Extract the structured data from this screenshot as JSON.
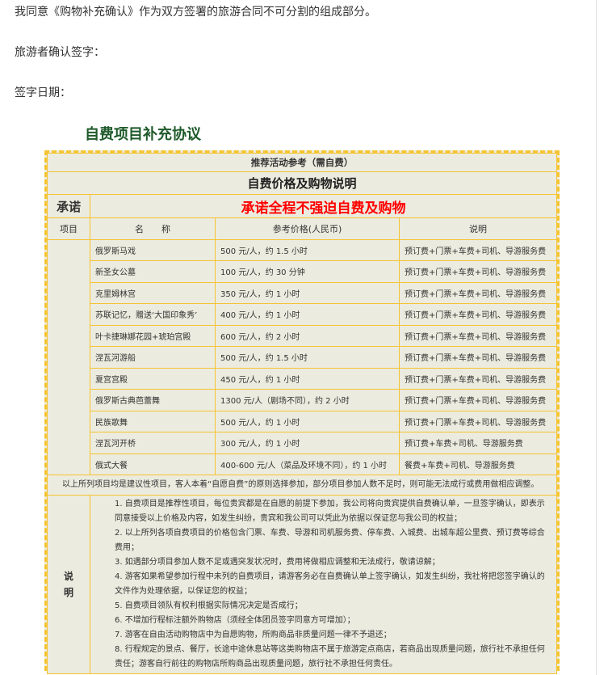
{
  "intro": {
    "agree": "我同意《购物补充确认》作为双方签署的旅游合同不可分割的组成部分。",
    "sign": "旅游者确认签字：",
    "date": "签字日期："
  },
  "title": "自费项目补充协议",
  "table": {
    "caption": "推荐活动参考（需自费）",
    "heading": "自费价格及购物说明",
    "promise_label": "承诺",
    "promise": "承诺全程不强迫自费及购物",
    "columns": [
      "项目",
      "名　　称",
      "参考价格(人民币)",
      "说明"
    ],
    "rows": [
      {
        "name": "俄罗斯马戏",
        "price": "500 元/人，约 1.5 小时",
        "desc": "预订费+门票+车费+司机、导游服务费"
      },
      {
        "name": "新圣女公墓",
        "price": "100 元/人，约 30 分钟",
        "desc": "预订费+门票+车费+司机、导游服务费"
      },
      {
        "name": "克里姆林宫",
        "price": "350 元/人，约 1 小时",
        "desc": "预订费+门票+车费+司机、导游服务费"
      },
      {
        "name": "苏联记忆，赠送‘大国印象秀’",
        "price": "400 元/人，约 1 小时",
        "desc": "预订费+门票+车费+司机、导游服务费"
      },
      {
        "name": "叶卡捷琳娜花园+琥珀宫殿",
        "price": "600 元/人，约 2 小时",
        "desc": "预订费+门票+车费+司机、导游服务费"
      },
      {
        "name": "涅瓦河游船",
        "price": "500 元/人，约 1.5 小时",
        "desc": "预订费+门票+车费+司机、导游服务费"
      },
      {
        "name": "夏宫宫殿",
        "price": "450 元/人，约 1 小时",
        "desc": "预订费+门票+车费+司机、导游服务费"
      },
      {
        "name": "俄罗斯古典芭蕾舞",
        "price": "1300 元/人（剧场不同），约 2 小时",
        "desc": "预订费+门票+车费+司机、导游服务费"
      },
      {
        "name": "民族歌舞",
        "price": "500 元/人，约 1 小时",
        "desc": "预订费+门票+车费+司机、导游服务费"
      },
      {
        "name": "涅瓦河开桥",
        "price": "300 元/人，约 1 小时",
        "desc": "预订费+车费+司机、导游服务费"
      },
      {
        "name": "俄式大餐",
        "price": "400-600 元/人（菜品及环境不同），约 1 小时",
        "desc": "餐费+车费+司机、导游服务费"
      }
    ],
    "remark": "以上所列项目均是建议性项目，客人本着“自愿自费”的原则选择参加，部分项目参加人数不足时，则可能无法成行或费用做相应调整。",
    "notes_label": "说明",
    "notes": [
      "1. 自费项目是推荐性项目，每位贵宾都是在自愿的前提下参加，我公司将向贵宾提供自费确认单，一旦签字确认，即表示同意接受以上价格及内容，如发生纠纷，贵宾和我公司可以凭此为依据以保证您与我公司的权益；",
      "2. 以上所列各项自费项目的价格包含门票、车费、导游和司机服务费、停车费、入城费、出城车超公里费、预订费等综合费用；",
      "3. 如遇部分项目参加人数不足或遇突发状况时，费用将做相应调整和无法成行，敬请谅解；",
      "4. 游客如果希望参加行程中未列的自费项目，请游客务必在自费确认单上签字确认，如发生纠纷，我社将把您签字确认的文件作为处理依据，以保证您的权益；",
      "5. 自费项目领队有权利根据实际情况决定是否成行；",
      "6. 不增加行程标注额外购物店（须经全体团员签字同意方可增加）；",
      "7. 游客在自由活动购物店中为自愿购物，所购商品非质量问题一律不予退还；",
      "8. 行程规定的景点、餐厅，长途中途休息站等这类购物店不属于旅游定点商店，若商品出现质量问题，旅行社不承担任何责任；游客自行前往的购物店所购商品出现质量问题，旅行社不承担任何责任。"
    ]
  }
}
